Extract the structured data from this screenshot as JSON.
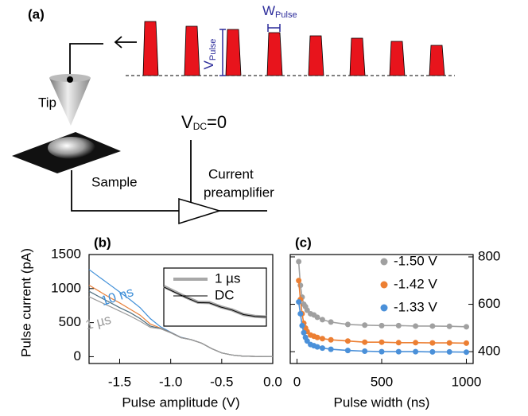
{
  "diagram": {
    "label": "(a)",
    "tip": "Tip",
    "sample": "Sample",
    "v_dc": {
      "base": "V",
      "sub": "DC",
      "rest": "=0"
    },
    "amplifier": [
      "Current",
      "preamplifier"
    ],
    "w_pulse": {
      "base": "W",
      "sub": "Pulse"
    },
    "v_pulse": {
      "base": "V",
      "sub": "Pulse"
    }
  },
  "chart_data": [
    {
      "type": "line",
      "title": "(b)",
      "x_label": "Pulse amplitude (V)",
      "y_label": "Pulse current (pA)",
      "x": [
        -1.8,
        -1.7,
        -1.6,
        -1.5,
        -1.4,
        -1.3,
        -1.2,
        -1.1,
        -1.0,
        -0.9,
        -0.8,
        -0.7,
        -0.6,
        -0.5,
        -0.4,
        -0.3,
        -0.2,
        -0.1,
        0.0
      ],
      "xlim": [
        -1.8,
        0
      ],
      "xticks": [
        -1.5,
        {
          "value": -1,
          "label": "-1.0"
        },
        -0.5,
        {
          "value": 0,
          "label": "0.0"
        }
      ],
      "ylim": [
        -100,
        1500
      ],
      "yticks": [
        0,
        500,
        1000,
        1500
      ],
      "annotations": [
        {
          "text": "10 ns",
          "color": "#3f8fd8"
        },
        {
          "text": "1 µs",
          "color": "#9a9a9a"
        }
      ],
      "series": [
        {
          "color": "#3f8fd8",
          "linewidth": 1.2,
          "values": [
            1280,
            1170,
            1060,
            950,
            840,
            720,
            560,
            440,
            360,
            285,
            250,
            200,
            120,
            55,
            25,
            10,
            5,
            2,
            0
          ]
        },
        {
          "color": "#e8803a",
          "linewidth": 1.2,
          "values": [
            1050,
            960,
            870,
            790,
            700,
            610,
            480,
            420,
            355,
            282,
            250,
            200,
            120,
            55,
            25,
            10,
            5,
            2,
            0
          ]
        },
        {
          "color": "#4d6c7c",
          "linewidth": 1.2,
          "values": [
            960,
            880,
            800,
            720,
            650,
            560,
            450,
            415,
            352,
            280,
            250,
            200,
            120,
            55,
            25,
            10,
            5,
            2,
            0
          ]
        },
        {
          "color": "#9a9a9a",
          "linewidth": 1.2,
          "values": [
            880,
            810,
            740,
            670,
            600,
            520,
            430,
            410,
            350,
            280,
            250,
            200,
            120,
            55,
            25,
            10,
            5,
            2,
            0
          ]
        }
      ]
    },
    {
      "type": "line",
      "inset": true,
      "legend": "top right",
      "x": [
        -1.8,
        -1.6,
        -1.4,
        -1.2,
        -1.0,
        -0.8,
        -0.6,
        -0.4,
        -0.2,
        0.0
      ],
      "xlim": [
        -1.8,
        0
      ],
      "ylim": [
        -300,
        1600
      ],
      "series": [
        {
          "name": "1 µs",
          "color": "#a8a8a8",
          "linewidth": 4,
          "values": [
            1000,
            820,
            640,
            480,
            470,
            330,
            230,
            80,
            20,
            0
          ]
        },
        {
          "name": "DC",
          "color": "#000000",
          "linewidth": 1,
          "values": [
            980,
            800,
            630,
            470,
            460,
            325,
            225,
            78,
            18,
            0
          ]
        }
      ]
    },
    {
      "type": "scatter",
      "title": "(c)",
      "x_label": "Pulse width (ns)",
      "y_axis": "right",
      "legend": "top right",
      "x": [
        10,
        20,
        30,
        40,
        50,
        60,
        80,
        100,
        120,
        150,
        200,
        300,
        400,
        500,
        600,
        700,
        800,
        900,
        1000
      ],
      "xlim": [
        -40,
        1040
      ],
      "xticks": [
        0,
        500,
        1000
      ],
      "ylim": [
        350,
        810
      ],
      "yticks": [
        400,
        600,
        800
      ],
      "series": [
        {
          "name": "-1.50 V",
          "color": "#a0a0a0",
          "values": [
            780,
            680,
            630,
            600,
            590,
            575,
            560,
            555,
            545,
            535,
            525,
            515,
            512,
            510,
            510,
            508,
            508,
            507,
            505
          ]
        },
        {
          "name": "-1.42 V",
          "color": "#ec7f33",
          "values": [
            700,
            620,
            560,
            520,
            500,
            485,
            470,
            465,
            460,
            455,
            450,
            445,
            440,
            440,
            438,
            438,
            437,
            437,
            436
          ]
        },
        {
          "name": "-1.33 V",
          "color": "#4a90d9",
          "values": [
            610,
            560,
            510,
            480,
            460,
            445,
            430,
            425,
            420,
            415,
            410,
            405,
            402,
            400,
            400,
            400,
            399,
            399,
            398
          ]
        }
      ]
    }
  ]
}
